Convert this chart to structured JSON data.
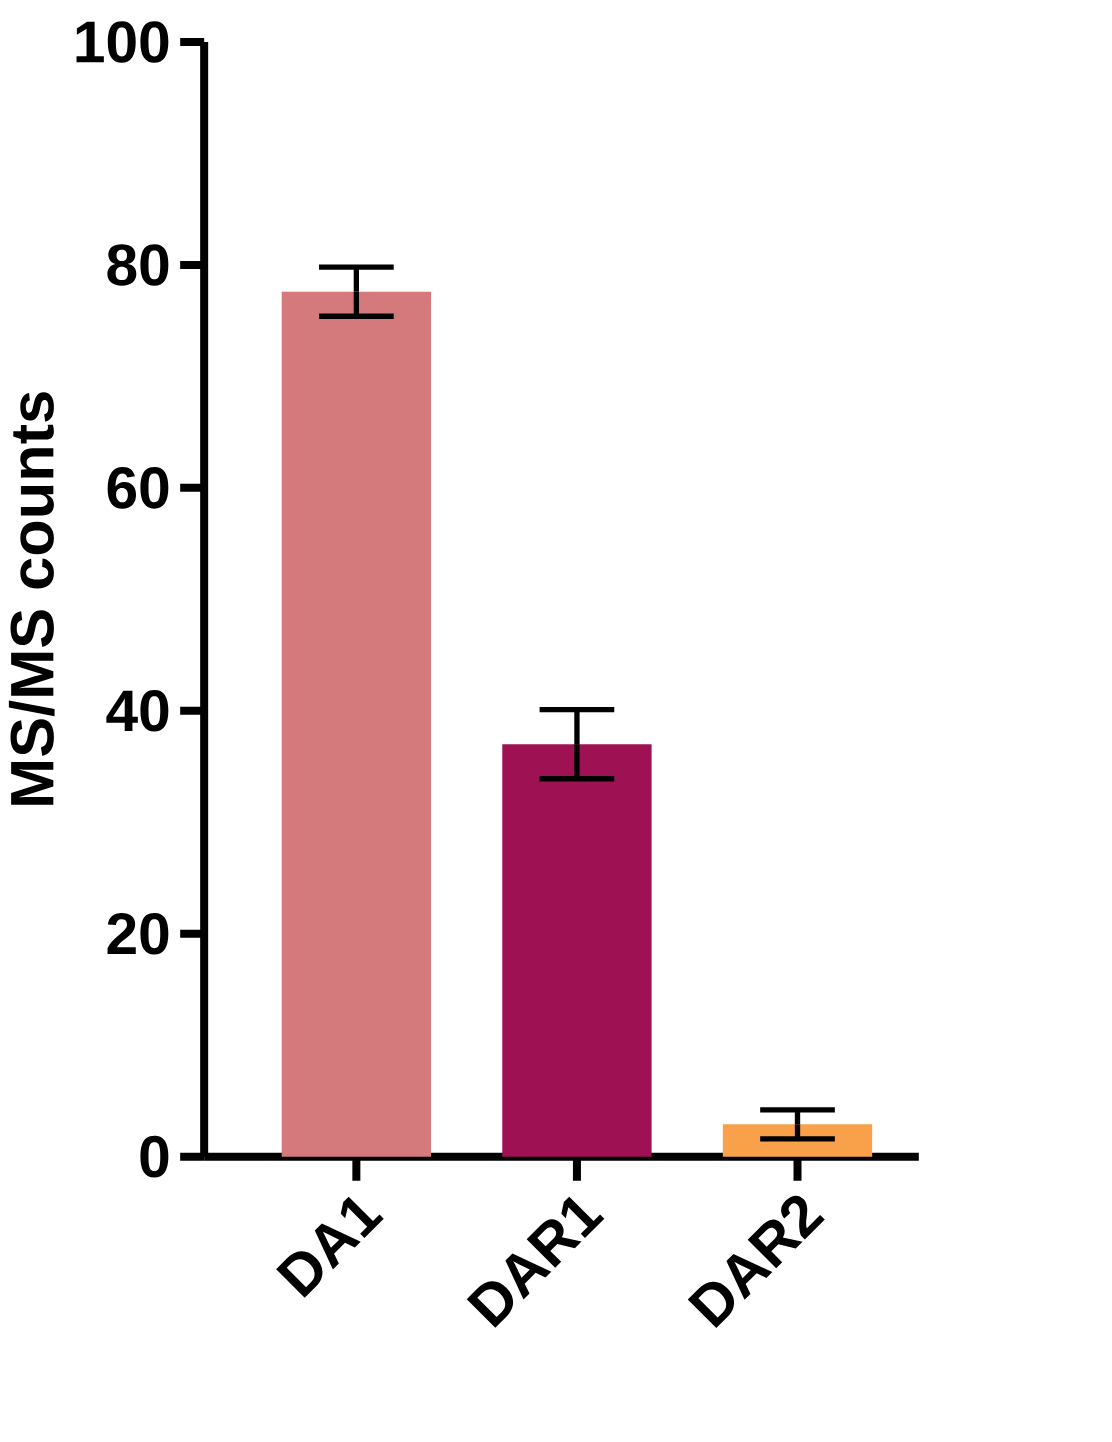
{
  "chart_data": {
    "type": "bar",
    "ylabel": "MS/MS counts",
    "categories": [
      "DA1",
      "DAR1",
      "DAR2"
    ],
    "values": [
      77.6,
      37.0,
      2.9
    ],
    "errors": [
      2.2,
      3.1,
      1.3
    ],
    "colors": [
      "#d47a7c",
      "#9e1254",
      "#f8a14a"
    ],
    "ylim": [
      0,
      100
    ],
    "yticks": [
      0,
      20,
      40,
      60,
      80,
      100
    ]
  }
}
